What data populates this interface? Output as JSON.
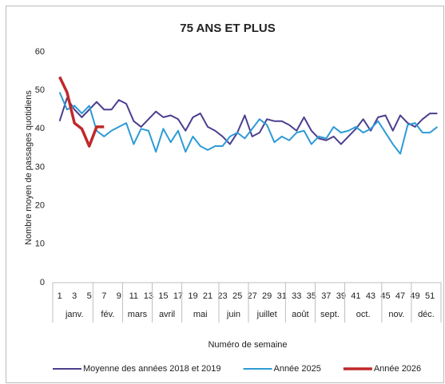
{
  "chart_data": {
    "type": "line",
    "title": "75 ANS ET PLUS",
    "y_label": "Nombre moyen de passages quotidiens",
    "x_label": "Numéro de semaine",
    "categories": [
      "1",
      null,
      "3",
      null,
      "5",
      null,
      "7",
      null,
      "9",
      null,
      "11",
      null,
      "13",
      null,
      "15",
      null,
      "17",
      null,
      "19",
      null,
      "21",
      null,
      "23",
      null,
      "25",
      null,
      "27",
      null,
      "29",
      null,
      "31",
      null,
      "33",
      null,
      "35",
      null,
      "37",
      null,
      "39",
      null,
      "41",
      null,
      "43",
      null,
      "45",
      null,
      "47",
      null,
      "49",
      null,
      "51",
      null
    ],
    "category_groups": [
      {
        "label": "janv.",
        "span": 5
      },
      {
        "label": "fév.",
        "span": 4
      },
      {
        "label": "mars",
        "span": 4
      },
      {
        "label": "avril",
        "span": 4
      },
      {
        "label": "mai",
        "span": 5
      },
      {
        "label": "juin",
        "span": 4
      },
      {
        "label": "juillet",
        "span": 5
      },
      {
        "label": "août",
        "span": 4
      },
      {
        "label": "sept.",
        "span": 4
      },
      {
        "label": "oct.",
        "span": 5
      },
      {
        "label": "nov.",
        "span": 4
      },
      {
        "label": "déc.",
        "span": 4
      }
    ],
    "series": [
      {
        "name": "Moyenne des années 2018 et 2019",
        "color": "#4b3f8f",
        "width": 2,
        "values": [
          42,
          48,
          45,
          43,
          45,
          47,
          45,
          45,
          47.5,
          46.5,
          42,
          40.5,
          42.5,
          44.5,
          43,
          43.5,
          42.5,
          39.5,
          43,
          44,
          40.5,
          39.5,
          38,
          36,
          39,
          43.5,
          38,
          39,
          42.5,
          42,
          42,
          41,
          39.5,
          43,
          39.5,
          37.5,
          37,
          38,
          36,
          38,
          40,
          42.5,
          39.5,
          43,
          43.5,
          39.5,
          43.5,
          41.5,
          40.5,
          42.5,
          44,
          44
        ]
      },
      {
        "name": "Année 2025",
        "color": "#2e9bd6",
        "width": 2,
        "values": [
          49.5,
          45,
          46,
          44,
          46,
          39.5,
          38,
          39.5,
          40.5,
          41.5,
          36,
          40,
          39.5,
          34,
          40,
          36.5,
          39.5,
          34,
          38,
          35.5,
          34.5,
          35.5,
          35.5,
          38,
          39,
          37.5,
          40,
          42.5,
          41,
          36.5,
          38,
          37,
          39,
          39.5,
          36,
          38,
          37.5,
          40.5,
          39,
          39.5,
          40.5,
          39,
          40,
          42,
          39,
          36,
          33.5,
          41,
          41.5,
          39,
          39,
          40.5
        ]
      },
      {
        "name": "Année 2026",
        "color": "#c0282a",
        "width": 3.5,
        "values": [
          53.5,
          49.5,
          41.5,
          40,
          35.5,
          40.5,
          40.5,
          null,
          null,
          null,
          null,
          null,
          null,
          null,
          null,
          null,
          null,
          null,
          null,
          null,
          null,
          null,
          null,
          null,
          null,
          null,
          null,
          null,
          null,
          null,
          null,
          null,
          null,
          null,
          null,
          null,
          null,
          null,
          null,
          null,
          null,
          null,
          null,
          null,
          null,
          null,
          null,
          null,
          null,
          null,
          null,
          null
        ]
      }
    ],
    "ylim": [
      0,
      60
    ],
    "yticks": [
      0,
      10,
      20,
      30,
      40,
      50,
      60
    ],
    "grid": false,
    "legend": "bottom"
  }
}
